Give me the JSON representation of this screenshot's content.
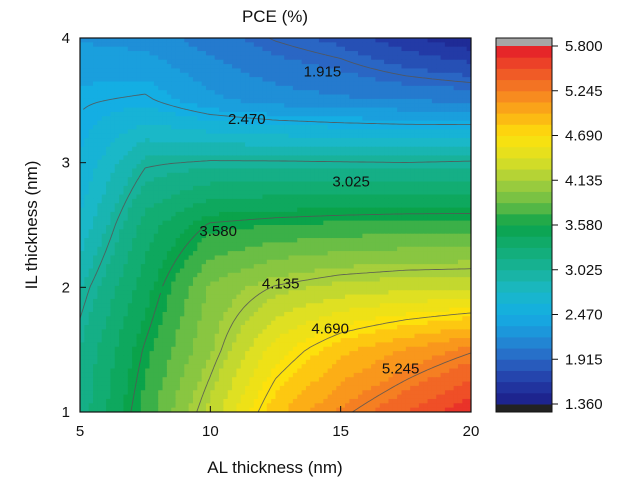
{
  "chart_data": {
    "type": "heatmap",
    "title": "PCE (%)",
    "xlabel": "AL thickness (nm)",
    "ylabel": "IL thickness (nm)",
    "xlim": [
      5,
      20
    ],
    "ylim": [
      1,
      4
    ],
    "x_ticks": [
      "5",
      "10",
      "15",
      "20"
    ],
    "y_ticks": [
      "1",
      "2",
      "3",
      "4"
    ],
    "colorbar": {
      "range": [
        1.36,
        5.8
      ],
      "tick_labels": [
        "5.800",
        "5.245",
        "4.690",
        "4.135",
        "3.580",
        "3.025",
        "2.470",
        "1.915",
        "1.360"
      ],
      "stops": [
        {
          "v": 1.36,
          "color": "#1b1d86"
        },
        {
          "v": 1.64,
          "color": "#233aa6"
        },
        {
          "v": 1.915,
          "color": "#2a66c4"
        },
        {
          "v": 2.2,
          "color": "#1f90d8"
        },
        {
          "v": 2.47,
          "color": "#14aee3"
        },
        {
          "v": 2.75,
          "color": "#1ab8c8"
        },
        {
          "v": 3.025,
          "color": "#18b29a"
        },
        {
          "v": 3.3,
          "color": "#12ad72"
        },
        {
          "v": 3.58,
          "color": "#0aa34a"
        },
        {
          "v": 3.86,
          "color": "#6cbe45"
        },
        {
          "v": 4.135,
          "color": "#a7cf3c"
        },
        {
          "v": 4.41,
          "color": "#dfe022"
        },
        {
          "v": 4.69,
          "color": "#fde10c"
        },
        {
          "v": 4.97,
          "color": "#fcae16"
        },
        {
          "v": 5.245,
          "color": "#f57f22"
        },
        {
          "v": 5.52,
          "color": "#ef4f27"
        },
        {
          "v": 5.8,
          "color": "#e3182a"
        }
      ],
      "over_color": "#a6a6a6",
      "under_color": "#222222"
    },
    "grid_x": [
      5,
      7.5,
      10,
      12.5,
      15,
      17.5,
      20
    ],
    "grid_y": [
      1,
      1.5,
      2,
      2.5,
      3,
      3.5,
      4
    ],
    "z": [
      [
        3.15,
        3.7,
        4.25,
        4.85,
        5.2,
        5.45,
        5.7
      ],
      [
        3.1,
        3.6,
        4.05,
        4.55,
        4.85,
        5.05,
        5.22
      ],
      [
        2.95,
        3.45,
        3.95,
        4.15,
        4.25,
        4.3,
        4.32
      ],
      [
        2.7,
        3.3,
        3.6,
        3.65,
        3.68,
        3.7,
        3.7
      ],
      [
        2.55,
        3.0,
        3.05,
        3.05,
        3.04,
        3.03,
        3.05
      ],
      [
        2.45,
        2.5,
        2.3,
        2.2,
        2.15,
        2.12,
        2.1
      ],
      [
        2.25,
        2.2,
        2.05,
        1.9,
        1.8,
        1.6,
        1.45
      ]
    ],
    "contour_levels": [
      "1.915",
      "2.470",
      "3.025",
      "3.580",
      "4.135",
      "4.690",
      "5.245"
    ],
    "contour_labels": [
      {
        "text": "1.915",
        "x": 14.3,
        "y": 3.73
      },
      {
        "text": "2.470",
        "x": 11.4,
        "y": 3.35
      },
      {
        "text": "3.025",
        "x": 15.4,
        "y": 2.85
      },
      {
        "text": "3.580",
        "x": 10.3,
        "y": 2.45
      },
      {
        "text": "4.135",
        "x": 12.7,
        "y": 2.03
      },
      {
        "text": "4.690",
        "x": 14.6,
        "y": 1.67
      },
      {
        "text": "5.245",
        "x": 17.3,
        "y": 1.35
      }
    ]
  }
}
